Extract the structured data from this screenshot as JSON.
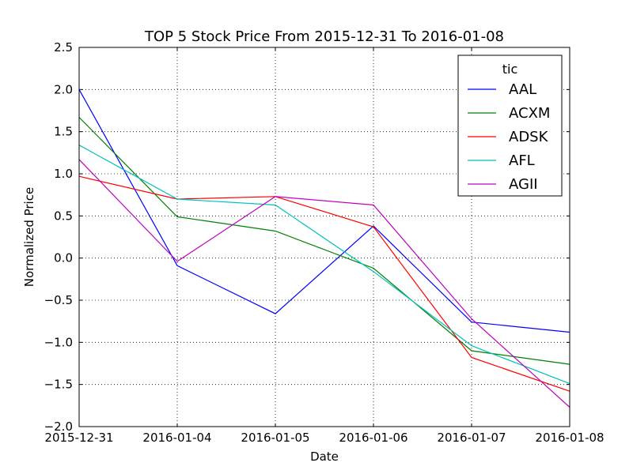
{
  "chart_data": {
    "type": "line",
    "title": "TOP 5 Stock Price From 2015-12-31 To 2016-01-08",
    "xlabel": "Date",
    "ylabel": "Normalized Price",
    "categories": [
      "2015-12-31",
      "2016-01-04",
      "2016-01-05",
      "2016-01-06",
      "2016-01-07",
      "2016-01-08"
    ],
    "ylim": [
      -2.0,
      2.5
    ],
    "yticks": [
      2.5,
      2.0,
      1.5,
      1.0,
      0.5,
      0.0,
      -0.5,
      -1.0,
      -1.5,
      -2.0
    ],
    "ytick_labels": [
      "2.5",
      "2.0",
      "1.5",
      "1.0",
      "0.5",
      "0.0",
      "−0.5",
      "−1.0",
      "−1.5",
      "−2.0"
    ],
    "grid": true,
    "legend_title": "tic",
    "legend_position": "top-right",
    "series": [
      {
        "name": "AAL",
        "color": "#0000ff",
        "values": [
          2.0,
          -0.09,
          -0.66,
          0.38,
          -0.76,
          -0.88
        ]
      },
      {
        "name": "ACXM",
        "color": "#008000",
        "values": [
          1.67,
          0.49,
          0.32,
          -0.12,
          -1.1,
          -1.26
        ]
      },
      {
        "name": "ADSK",
        "color": "#ff0000",
        "values": [
          0.97,
          0.7,
          0.73,
          0.37,
          -1.18,
          -1.58
        ]
      },
      {
        "name": "AFL",
        "color": "#00bfbf",
        "values": [
          1.34,
          0.7,
          0.63,
          -0.16,
          -1.04,
          -1.49
        ]
      },
      {
        "name": "AGII",
        "color": "#bf00bf",
        "values": [
          1.17,
          -0.04,
          0.73,
          0.63,
          -0.72,
          -1.77
        ]
      }
    ]
  }
}
